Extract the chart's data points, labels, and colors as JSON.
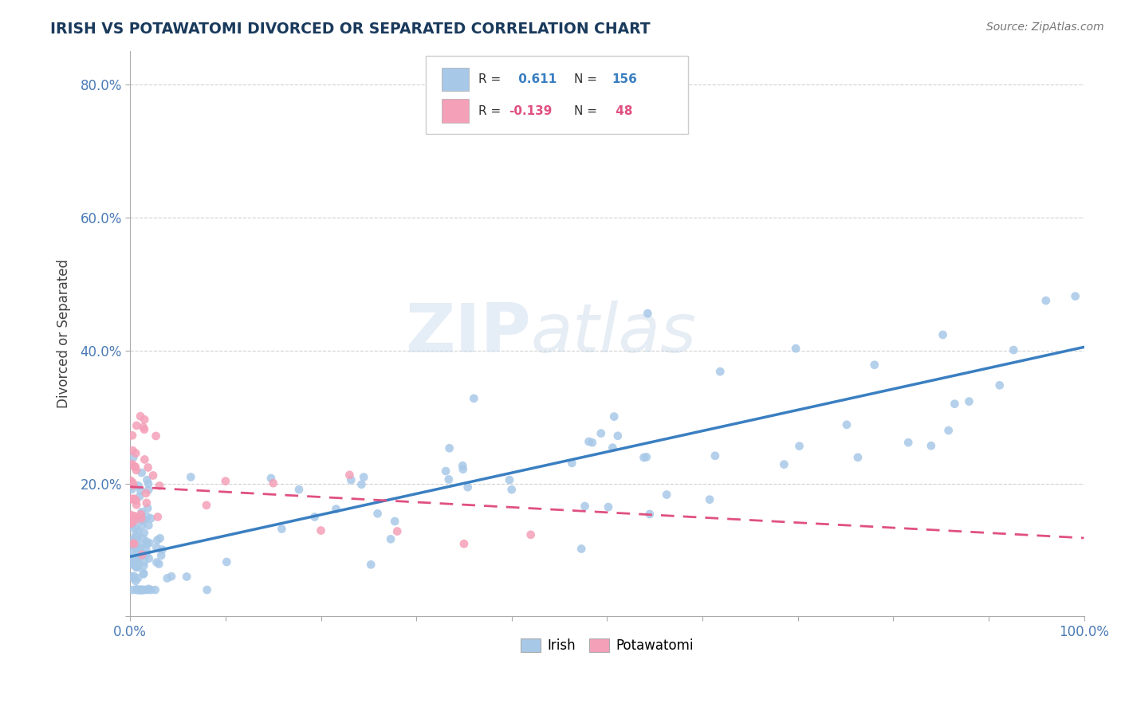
{
  "title": "IRISH VS POTAWATOMI DIVORCED OR SEPARATED CORRELATION CHART",
  "source": "Source: ZipAtlas.com",
  "ylabel": "Divorced or Separated",
  "xlim": [
    0.0,
    1.0
  ],
  "ylim": [
    0.0,
    0.85
  ],
  "xtick_positions": [
    0.0,
    0.1,
    0.2,
    0.3,
    0.4,
    0.5,
    0.6,
    0.7,
    0.8,
    0.9,
    1.0
  ],
  "xtick_labels": [
    "0.0%",
    "",
    "",
    "",
    "",
    "",
    "",
    "",
    "",
    "",
    "100.0%"
  ],
  "ytick_positions": [
    0.0,
    0.2,
    0.4,
    0.6,
    0.8
  ],
  "ytick_labels": [
    "",
    "20.0%",
    "40.0%",
    "60.0%",
    "80.0%"
  ],
  "irish_color": "#a8c8e8",
  "potawatomi_color": "#f4a0b8",
  "irish_line_color": "#3a7fc1",
  "potawatomi_line_color": "#e05080",
  "r_irish": 0.611,
  "n_irish": 156,
  "r_potawatomi": -0.139,
  "n_potawatomi": 48,
  "legend_label_irish": "Irish",
  "legend_label_potawatomi": "Potawatomi",
  "watermark_zip": "ZIP",
  "watermark_atlas": "atlas",
  "irish_trend_x": [
    0.0,
    1.0
  ],
  "irish_trend_y": [
    0.09,
    0.405
  ],
  "potawatomi_trend_x": [
    0.0,
    1.0
  ],
  "potawatomi_trend_y": [
    0.195,
    0.118
  ]
}
